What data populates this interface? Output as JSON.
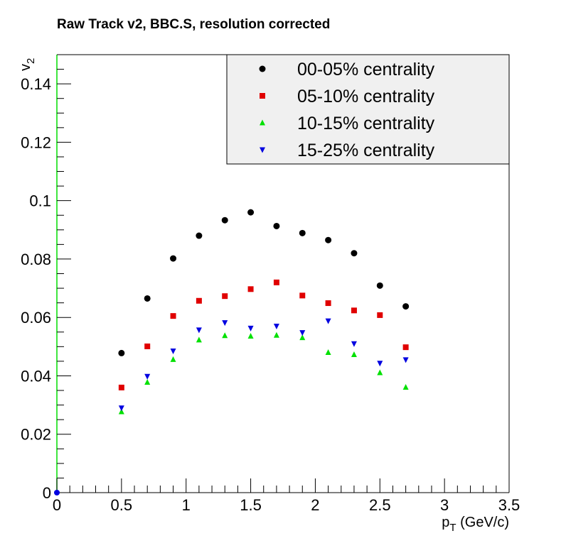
{
  "chart_data": {
    "type": "scatter",
    "title": "Raw Track v2, BBC.S, resolution corrected",
    "xlabel": {
      "main": "p",
      "sub": "T",
      "rest": " (GeV/c)"
    },
    "ylabel": {
      "main": "v",
      "sub": "2"
    },
    "xlim": [
      0,
      3.5
    ],
    "ylim": [
      0,
      0.15
    ],
    "x_ticks": [
      0,
      0.5,
      1,
      1.5,
      2,
      2.5,
      3,
      3.5
    ],
    "x_tick_labels": [
      "0",
      "0.5",
      "1",
      "1.5",
      "2",
      "2.5",
      "3",
      "3.5"
    ],
    "y_ticks": [
      0,
      0.02,
      0.04,
      0.06,
      0.08,
      0.1,
      0.12,
      0.14
    ],
    "y_tick_labels": [
      "0",
      "0.02",
      "0.04",
      "0.06",
      "0.08",
      "0.1",
      "0.12",
      "0.14"
    ],
    "grid": false,
    "legend_position": "top-right",
    "x": [
      0.5,
      0.7,
      0.9,
      1.1,
      1.3,
      1.5,
      1.7,
      1.9,
      2.1,
      2.3,
      2.5,
      2.7
    ],
    "series": [
      {
        "name": "00-05% centrality",
        "marker": "circle",
        "color": "#000000",
        "values": [
          0.0478,
          0.0665,
          0.0802,
          0.088,
          0.0933,
          0.096,
          0.0913,
          0.0889,
          0.0865,
          0.082,
          0.0709,
          0.0638
        ]
      },
      {
        "name": "05-10% centrality",
        "marker": "square",
        "color": "#e00000",
        "values": [
          0.036,
          0.0501,
          0.0605,
          0.0657,
          0.0673,
          0.0697,
          0.072,
          0.0675,
          0.0649,
          0.0624,
          0.0608,
          0.0498
        ]
      },
      {
        "name": "10-15% centrality",
        "marker": "triangle-up",
        "color": "#00e000",
        "values": [
          0.0277,
          0.0378,
          0.0456,
          0.0523,
          0.0538,
          0.0536,
          0.0539,
          0.0531,
          0.048,
          0.0473,
          0.0411,
          0.0361
        ]
      },
      {
        "name": "15-25% centrality",
        "marker": "triangle-down",
        "color": "#0000e0",
        "values": [
          0.029,
          0.0398,
          0.0485,
          0.0557,
          0.0582,
          0.0563,
          0.057,
          0.0548,
          0.0588,
          0.051,
          0.0443,
          0.0455
        ]
      }
    ],
    "origin_point": {
      "x": 0,
      "y": 0,
      "color": "#0000e0"
    },
    "legend_background": "#f0f0f0",
    "left_axis_color": "#00dd00"
  }
}
